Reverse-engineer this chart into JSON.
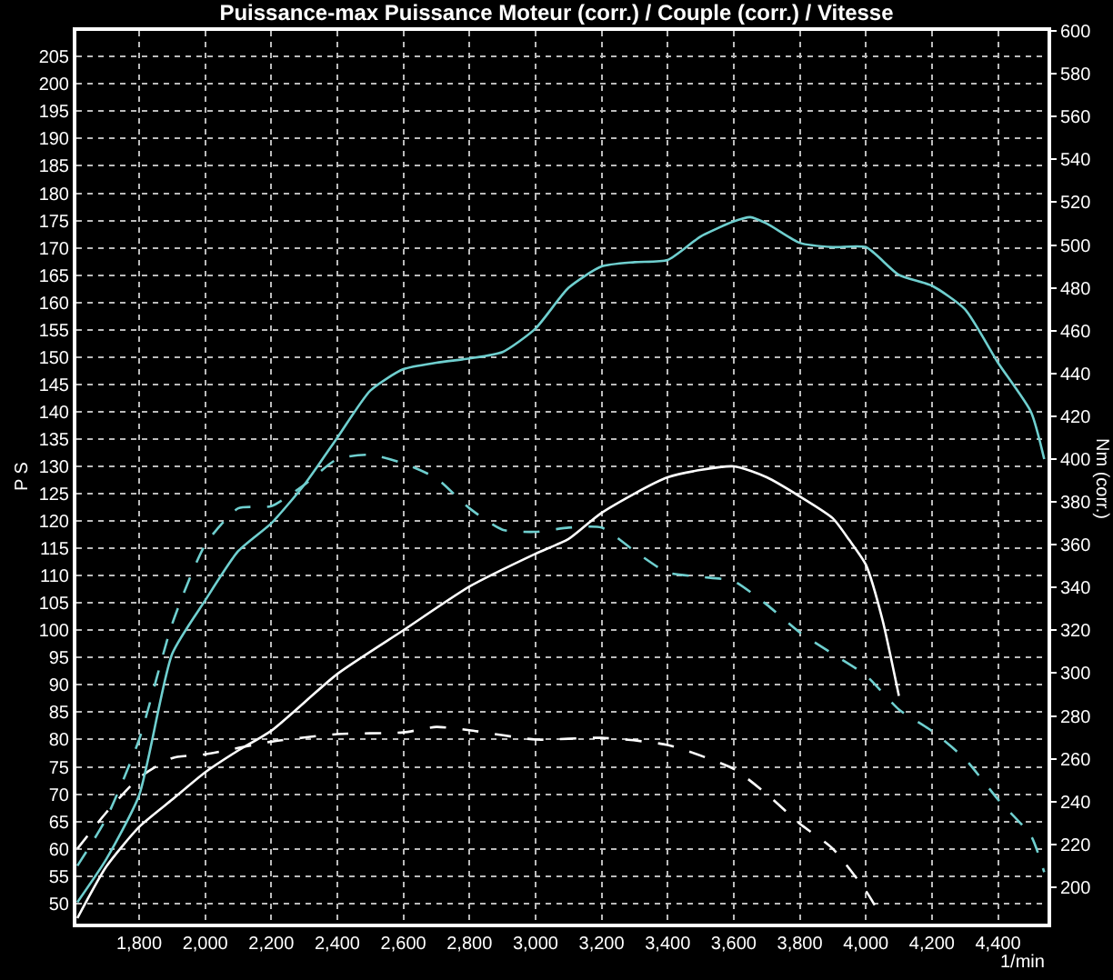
{
  "chart_data": {
    "type": "line",
    "title": "Puissance-max Puissance Moteur (corr.) / Couple (corr.) / Vitesse",
    "xlabel": "1/min",
    "ylabel": "P S",
    "y2label": "Nm (corr.)",
    "series": [
      {
        "axis": "y2",
        "color": "#6fcfcf",
        "line_style": "solid",
        "x": [
          1613,
          1700,
          1800,
          1900,
          2000,
          2100,
          2200,
          2300,
          2400,
          2500,
          2600,
          2700,
          2800,
          2900,
          3000,
          3100,
          3200,
          3300,
          3400,
          3500,
          3600,
          3650,
          3700,
          3800,
          3900,
          4000,
          4100,
          4200,
          4300,
          4400,
          4500,
          4540
        ],
        "values": [
          193,
          213,
          243,
          309,
          334,
          357,
          370,
          388,
          410,
          432,
          442,
          445,
          447,
          450,
          461,
          480,
          490,
          492,
          493,
          504,
          511,
          513,
          510,
          501,
          499,
          499,
          486,
          481,
          470,
          445,
          422,
          400
        ]
      },
      {
        "axis": "y",
        "color": "#ffffff",
        "line_style": "solid",
        "x": [
          1613,
          1700,
          1800,
          1900,
          2000,
          2100,
          2200,
          2400,
          2600,
          2800,
          3000,
          3100,
          3200,
          3400,
          3600,
          3700,
          3800,
          3900,
          3950,
          4000,
          4050,
          4100
        ],
        "values": [
          47.3,
          56.7,
          64,
          69,
          74,
          78,
          81.6,
          92,
          100,
          108,
          114,
          116.7,
          121.5,
          128,
          130,
          128,
          124.5,
          120.5,
          116.5,
          112,
          102,
          88
        ]
      },
      {
        "axis": "y2",
        "color": "#6fcfcf",
        "line_style": "dashed",
        "x": [
          1613,
          1700,
          1800,
          1900,
          2000,
          2100,
          2200,
          2300,
          2400,
          2500,
          2600,
          2700,
          2800,
          2900,
          3000,
          3100,
          3200,
          3300,
          3400,
          3500,
          3600,
          3700,
          3800,
          3900,
          4000,
          4100,
          4200,
          4300,
          4400,
          4500,
          4540
        ],
        "values": [
          210,
          232,
          269,
          323,
          360,
          377,
          378,
          388,
          400,
          402,
          398,
          391,
          377,
          367,
          366,
          368,
          368,
          357,
          347,
          345,
          343,
          332,
          319,
          309,
          299,
          283,
          273,
          260,
          241,
          224,
          207
        ]
      },
      {
        "axis": "y",
        "color": "#ffffff",
        "line_style": "dashed",
        "x": [
          1613,
          1700,
          1800,
          1900,
          2000,
          2200,
          2400,
          2600,
          2700,
          2800,
          3000,
          3200,
          3400,
          3600,
          3700,
          3800,
          3900,
          4000,
          4050
        ],
        "values": [
          60,
          66.6,
          73,
          76.6,
          77.3,
          79.6,
          81,
          81.3,
          82.3,
          81.7,
          80,
          80.3,
          79,
          74.6,
          70,
          64.6,
          60,
          52.3,
          47.3
        ]
      }
    ],
    "xlim": [
      1610,
      4550
    ],
    "xticks": [
      {
        "value": 1800,
        "label": "1,800"
      },
      {
        "value": 2000,
        "label": "2,000"
      },
      {
        "value": 2200,
        "label": "2,200"
      },
      {
        "value": 2400,
        "label": "2,400"
      },
      {
        "value": 2600,
        "label": "2,600"
      },
      {
        "value": 2800,
        "label": "2,800"
      },
      {
        "value": 3000,
        "label": "3,000"
      },
      {
        "value": 3200,
        "label": "3,200"
      },
      {
        "value": 3400,
        "label": "3,400"
      },
      {
        "value": 3600,
        "label": "3,600"
      },
      {
        "value": 3800,
        "label": "3,800"
      },
      {
        "value": 4000,
        "label": "4,000"
      },
      {
        "value": 4200,
        "label": "4,200"
      },
      {
        "value": 4400,
        "label": "4,400"
      }
    ],
    "ylim": [
      46.3,
      209.7
    ],
    "yticks": [
      50,
      55,
      60,
      65,
      70,
      75,
      80,
      85,
      90,
      95,
      100,
      105,
      110,
      115,
      120,
      125,
      130,
      135,
      140,
      145,
      150,
      155,
      160,
      165,
      170,
      175,
      180,
      185,
      190,
      195,
      200,
      205
    ],
    "y2lim": [
      183,
      600
    ],
    "y2ticks": [
      200,
      220,
      240,
      260,
      280,
      300,
      320,
      340,
      360,
      380,
      400,
      420,
      440,
      460,
      480,
      500,
      520,
      540,
      560,
      580,
      600
    ],
    "grid": true
  }
}
